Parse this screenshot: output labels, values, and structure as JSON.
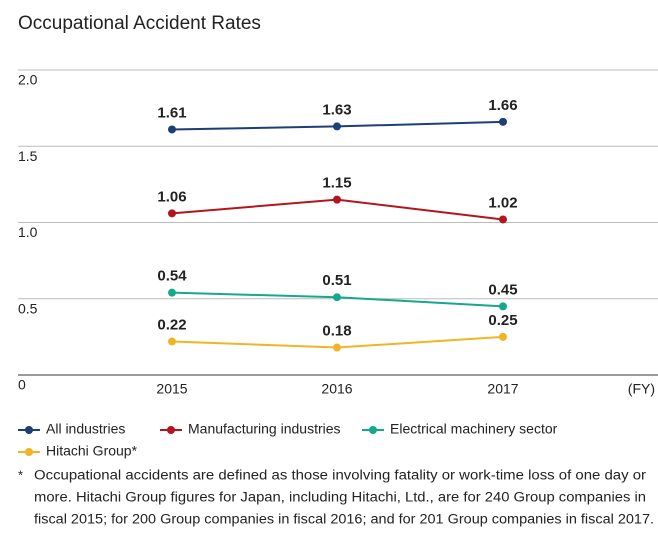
{
  "chart_data": {
    "type": "line",
    "title": "Occupational Accident Rates",
    "x_label": "(FY)",
    "categories": [
      "2015",
      "2016",
      "2017"
    ],
    "series": [
      {
        "name": "All industries",
        "color": "#1c3f78",
        "values": [
          1.61,
          1.63,
          1.66
        ]
      },
      {
        "name": "Manufacturing industries",
        "color": "#b3151f",
        "values": [
          1.06,
          1.15,
          1.02
        ]
      },
      {
        "name": "Electrical machinery sector",
        "color": "#16a88c",
        "values": [
          0.54,
          0.51,
          0.45
        ]
      },
      {
        "name": "Hitachi Group*",
        "color": "#f1b425",
        "values": [
          0.22,
          0.18,
          0.25
        ]
      }
    ],
    "ylim": [
      0,
      2
    ],
    "yticks": [
      0,
      0.5,
      {
        "value": 1,
        "label": "1.0"
      },
      1.5,
      {
        "value": 2,
        "label": "2.0"
      }
    ],
    "grid": true,
    "footnote": {
      "marker": "*",
      "lines": [
        "Occupational accidents are defined as those involving fatality or work-time loss of one day or",
        "more. Hitachi Group figures for Japan, including Hitachi, Ltd., are for 240 Group companies in",
        "fiscal 2015; for 200 Group companies in fiscal 2016; and for 201 Group companies in fiscal 2017."
      ]
    }
  }
}
